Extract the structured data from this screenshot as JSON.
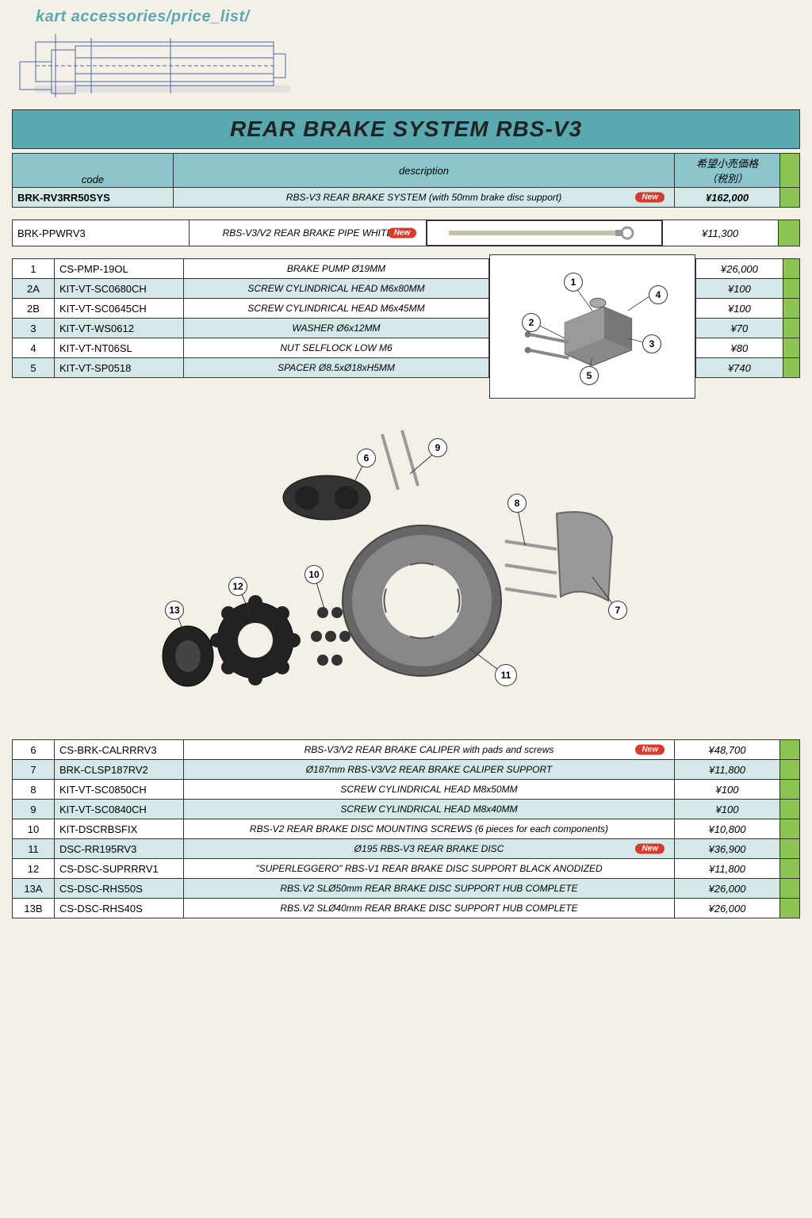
{
  "breadcrumb": "kart accessories/price_list/",
  "title": "REAR BRAKE SYSTEM RBS-V3",
  "headers": {
    "code": "code",
    "description": "description",
    "price": "希望小売価格\n（税別）"
  },
  "new_label": "New",
  "colors": {
    "accent": "#5aa8b0",
    "header_cell": "#8cc5cb",
    "tint_row": "#d4e8ea",
    "white_row": "#ffffff",
    "marker": "#8cc650",
    "new_badge": "#d93a2b",
    "page_bg": "#f4f0e8",
    "border": "#333333"
  },
  "main_system": {
    "code": "BRK-RV3RR50SYS",
    "description": "RBS-V3 REAR BRAKE SYSTEM (with 50mm brake disc support)",
    "price": "¥162,000",
    "is_new": true
  },
  "pipe": {
    "code": "BRK-PPWRV3",
    "description": "RBS-V3/V2 REAR BRAKE PIPE WHITE",
    "price": "¥11,300",
    "is_new": true
  },
  "pump_parts": [
    {
      "num": "1",
      "code": "CS-PMP-19OL",
      "desc": "BRAKE PUMP Ø19MM",
      "price": "¥26,000",
      "tint": false
    },
    {
      "num": "2A",
      "code": "KIT-VT-SC0680CH",
      "desc": "SCREW CYLINDRICAL HEAD M6x80MM",
      "price": "¥100",
      "tint": true
    },
    {
      "num": "2B",
      "code": "KIT-VT-SC0645CH",
      "desc": "SCREW CYLINDRICAL HEAD M6x45MM",
      "price": "¥100",
      "tint": false
    },
    {
      "num": "3",
      "code": "KIT-VT-WS0612",
      "desc": "WASHER Ø6x12MM",
      "price": "¥70",
      "tint": true
    },
    {
      "num": "4",
      "code": "KIT-VT-NT06SL",
      "desc": "NUT SELFLOCK LOW M6",
      "price": "¥80",
      "tint": false
    },
    {
      "num": "5",
      "code": "KIT-VT-SP0518",
      "desc": "SPACER Ø8.5xØ18xH5MM",
      "price": "¥740",
      "tint": true
    }
  ],
  "caliper_parts": [
    {
      "num": "6",
      "code": "CS-BRK-CALRRRV3",
      "desc": "RBS-V3/V2 REAR BRAKE CALIPER with pads and screws",
      "price": "¥48,700",
      "tint": false,
      "is_new": true
    },
    {
      "num": "7",
      "code": "BRK-CLSP187RV2",
      "desc": "Ø187mm RBS-V3/V2 REAR BRAKE CALIPER SUPPORT",
      "price": "¥11,800",
      "tint": true,
      "is_new": false
    },
    {
      "num": "8",
      "code": "KIT-VT-SC0850CH",
      "desc": "SCREW CYLINDRICAL HEAD M8x50MM",
      "price": "¥100",
      "tint": false,
      "is_new": false
    },
    {
      "num": "9",
      "code": "KIT-VT-SC0840CH",
      "desc": "SCREW CYLINDRICAL HEAD M8x40MM",
      "price": "¥100",
      "tint": true,
      "is_new": false
    },
    {
      "num": "10",
      "code": "KIT-DSCRBSFIX",
      "desc": "RBS-V2 REAR BRAKE DISC MOUNTING SCREWS (6 pieces for each components)",
      "price": "¥10,800",
      "tint": false,
      "is_new": false
    },
    {
      "num": "11",
      "code": "DSC-RR195RV3",
      "desc": "Ø195 RBS-V3 REAR BRAKE DISC",
      "price": "¥36,900",
      "tint": true,
      "is_new": true
    },
    {
      "num": "12",
      "code": "CS-DSC-SUPRRRV1",
      "desc": "\"SUPERLEGGERO\" RBS-V1 REAR BRAKE DISC SUPPORT BLACK ANODIZED",
      "price": "¥11,800",
      "tint": false,
      "is_new": false
    },
    {
      "num": "13A",
      "code": "CS-DSC-RHS50S",
      "desc": "RBS.V2 SLØ50mm REAR BRAKE DISC SUPPORT HUB COMPLETE",
      "price": "¥26,000",
      "tint": true,
      "is_new": false
    },
    {
      "num": "13B",
      "code": "CS-DSC-RHS40S",
      "desc": "RBS.V2 SLØ40mm REAR BRAKE DISC SUPPORT HUB COMPLETE",
      "price": "¥26,000",
      "tint": false,
      "is_new": false
    }
  ],
  "pump_callouts": [
    "1",
    "2",
    "3",
    "4",
    "5"
  ],
  "caliper_callouts": [
    "6",
    "7",
    "8",
    "9",
    "10",
    "11",
    "12",
    "13"
  ]
}
